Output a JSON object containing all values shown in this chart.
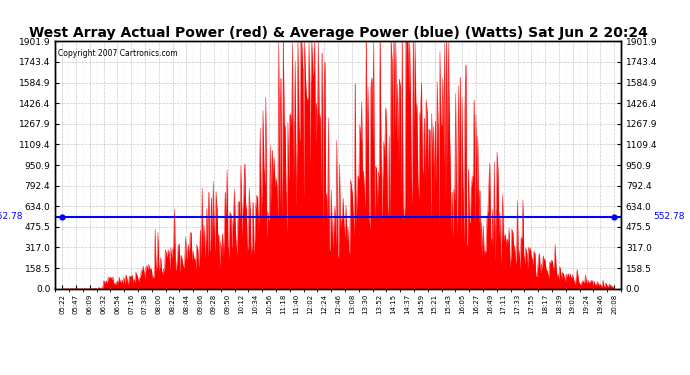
{
  "title": "West Array Actual Power (red) & Average Power (blue) (Watts) Sat Jun 2 20:24",
  "copyright": "Copyright 2007 Cartronics.com",
  "avg_power": 552.78,
  "ymin": 0.0,
  "ymax": 1901.9,
  "yticks": [
    0.0,
    158.5,
    317.0,
    475.5,
    634.0,
    792.4,
    950.9,
    1109.4,
    1267.9,
    1426.4,
    1584.9,
    1743.4,
    1901.9
  ],
  "xtick_labels": [
    "05:22",
    "05:47",
    "06:09",
    "06:32",
    "06:54",
    "07:16",
    "07:38",
    "08:00",
    "08:22",
    "08:44",
    "09:06",
    "09:28",
    "09:50",
    "10:12",
    "10:34",
    "10:56",
    "11:18",
    "11:40",
    "12:02",
    "12:24",
    "12:46",
    "13:08",
    "13:30",
    "13:52",
    "14:15",
    "14:37",
    "14:59",
    "15:21",
    "15:43",
    "16:05",
    "16:27",
    "16:49",
    "17:11",
    "17:33",
    "17:55",
    "18:17",
    "18:39",
    "19:02",
    "19:24",
    "19:46",
    "20:08"
  ],
  "title_fontsize": 10,
  "avg_label": "552.78",
  "bar_color": "#FF0000",
  "line_color": "#0000FF",
  "bg_color": "#FFFFFF",
  "grid_color": "#BBBBBB"
}
